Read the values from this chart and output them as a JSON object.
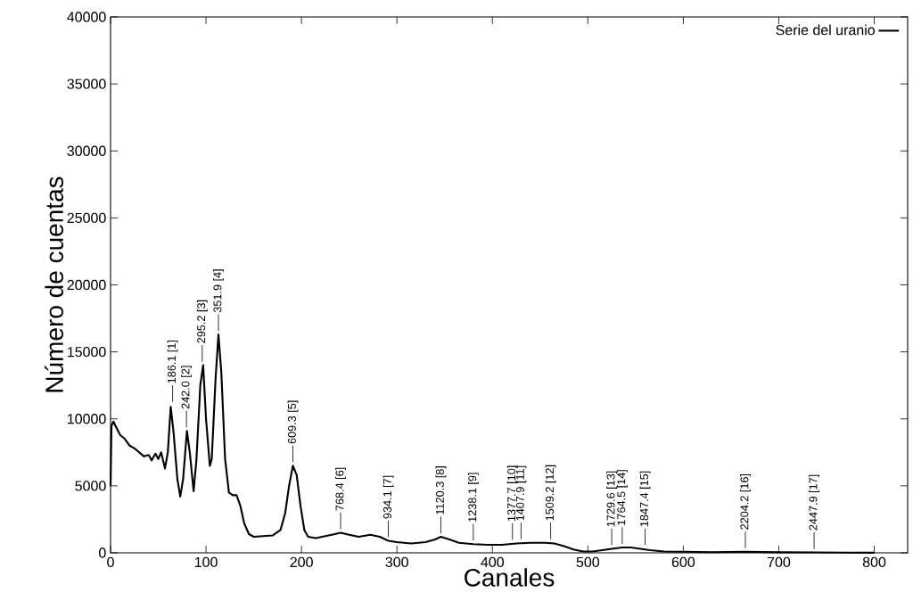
{
  "chart_data": {
    "type": "line",
    "xlabel": "Canales",
    "ylabel": "Número de cuentas",
    "legend": "top right",
    "xlim": [
      0,
      835
    ],
    "ylim": [
      0,
      40000
    ],
    "xticks": [
      0,
      100,
      200,
      300,
      400,
      500,
      600,
      700,
      800
    ],
    "yticks": [
      0,
      5000,
      10000,
      15000,
      20000,
      25000,
      30000,
      35000,
      40000
    ],
    "series": [
      {
        "name": "Serie del uranio",
        "color": "#000000",
        "x": [
          0,
          1,
          3,
          5,
          10,
          15,
          20,
          25,
          30,
          35,
          40,
          43,
          47,
          50,
          53,
          57,
          60,
          63,
          66,
          70,
          73,
          76,
          80,
          83,
          87,
          90,
          94,
          97,
          100,
          104,
          106,
          110,
          113,
          116,
          120,
          124,
          128,
          132,
          136,
          140,
          145,
          150,
          160,
          170,
          178,
          183,
          187,
          191,
          195,
          199,
          203,
          207,
          215,
          225,
          235,
          241,
          250,
          260,
          272,
          282,
          291,
          300,
          315,
          330,
          340,
          346,
          355,
          365,
          380,
          395,
          410,
          425,
          440,
          455,
          465,
          475,
          485,
          495,
          505,
          515,
          525,
          536,
          545,
          555,
          565,
          580,
          600,
          630,
          665,
          700,
          737,
          770,
          800
        ],
        "values": [
          5000,
          9500,
          9800,
          9500,
          8800,
          8500,
          8000,
          7800,
          7500,
          7200,
          7300,
          6900,
          7400,
          7000,
          7500,
          6300,
          7500,
          10900,
          9000,
          5500,
          4200,
          5500,
          9100,
          7500,
          4600,
          7000,
          12500,
          14000,
          10000,
          6500,
          7000,
          13000,
          16300,
          13500,
          7000,
          4500,
          4300,
          4300,
          3500,
          2200,
          1400,
          1200,
          1250,
          1300,
          1700,
          3000,
          5000,
          6500,
          5800,
          3500,
          1700,
          1200,
          1100,
          1250,
          1400,
          1500,
          1350,
          1200,
          1350,
          1200,
          900,
          800,
          700,
          800,
          1000,
          1200,
          1000,
          750,
          650,
          600,
          600,
          700,
          750,
          750,
          700,
          500,
          250,
          100,
          100,
          200,
          300,
          400,
          400,
          300,
          200,
          100,
          80,
          50,
          80,
          40,
          30,
          20,
          10
        ]
      }
    ],
    "annotations": [
      {
        "text": "186.1 [1]",
        "x": 65,
        "y": 11000
      },
      {
        "text": "242.0 [2]",
        "x": 79.5,
        "y": 9100
      },
      {
        "text": "295.2 [3]",
        "x": 96,
        "y": 14000
      },
      {
        "text": "351.9 [4]",
        "x": 113,
        "y": 16300
      },
      {
        "text": "609.3 [5]",
        "x": 191,
        "y": 6500
      },
      {
        "text": "768.4 [6]",
        "x": 241,
        "y": 1500
      },
      {
        "text": "934.1 [7]",
        "x": 291,
        "y": 900
      },
      {
        "text": "1120.3 [8]",
        "x": 346,
        "y": 1200
      },
      {
        "text": "1238.1 [9]",
        "x": 380,
        "y": 650
      },
      {
        "text": "1377.7 [10]",
        "x": 421,
        "y": 700
      },
      {
        "text": "1407.9 [11]",
        "x": 430,
        "y": 750
      },
      {
        "text": "1509.2 [12]",
        "x": 461,
        "y": 750
      },
      {
        "text": "1729.6 [13]",
        "x": 525,
        "y": 300
      },
      {
        "text": "1764.5 [14]",
        "x": 536,
        "y": 400
      },
      {
        "text": "1847.4 [15]",
        "x": 560,
        "y": 300
      },
      {
        "text": "2204.2 [16]",
        "x": 665,
        "y": 80
      },
      {
        "text": "2447.9 [17]",
        "x": 737,
        "y": 30
      }
    ]
  }
}
